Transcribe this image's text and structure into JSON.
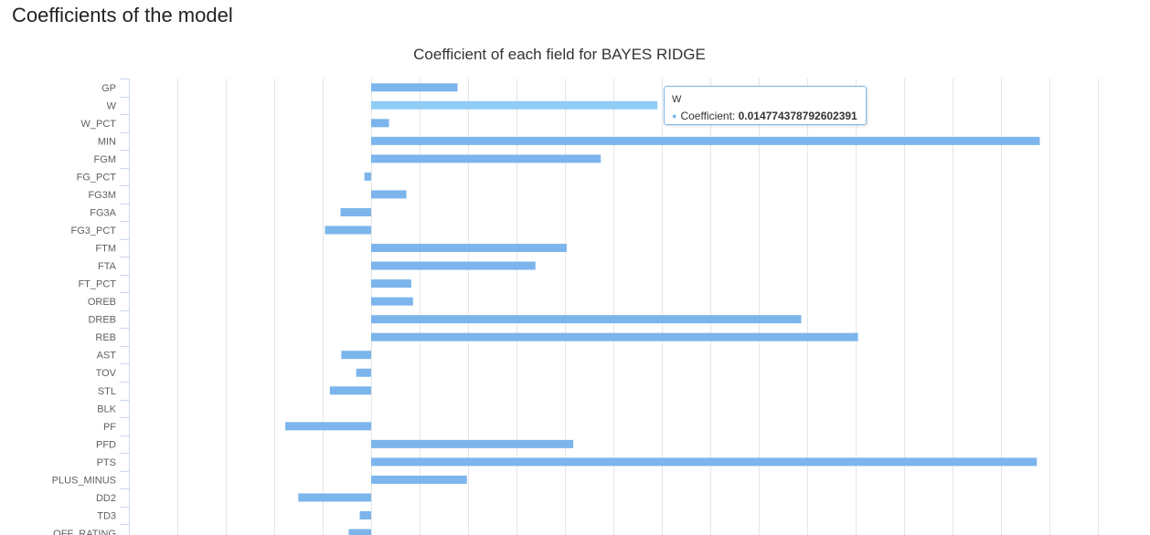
{
  "page": {
    "heading": "Coefficients of the model"
  },
  "colors": {
    "bar": "#7cb5ec",
    "bar_hover": "#90cdf6",
    "grid": "#e6e6e6",
    "axis": "#ccd6eb"
  },
  "chart_data": {
    "type": "bar",
    "orientation": "horizontal",
    "title": "Coefficient of each field for BAYES RIDGE",
    "series_name": "Coefficient",
    "categories": [
      "GP",
      "W",
      "W_PCT",
      "MIN",
      "FGM",
      "FG_PCT",
      "FG3M",
      "FG3A",
      "FG3_PCT",
      "FTM",
      "FTA",
      "FT_PCT",
      "OREB",
      "DREB",
      "REB",
      "AST",
      "TOV",
      "STL",
      "BLK",
      "PF",
      "PFD",
      "PTS",
      "PLUS_MINUS",
      "DD2",
      "TD3",
      "OFF_RATING"
    ],
    "values": [
      0.00446,
      0.014774378792602391,
      0.00092,
      0.0345,
      0.01185,
      -0.00035,
      0.00182,
      -0.00158,
      -0.00238,
      0.01009,
      0.00848,
      0.00207,
      0.00216,
      0.02219,
      0.02512,
      -0.00154,
      -0.00077,
      -0.00213,
      0.0,
      -0.00443,
      0.01043,
      0.03435,
      0.00494,
      -0.00376,
      -0.00059,
      -0.00116
    ],
    "xlim": [
      -0.0125,
      0.0375
    ],
    "grid": true,
    "legend": false,
    "highlighted_category": "W",
    "tooltip": {
      "category": "W",
      "label": "Coefficient",
      "value": "0.014774378792602391"
    }
  }
}
